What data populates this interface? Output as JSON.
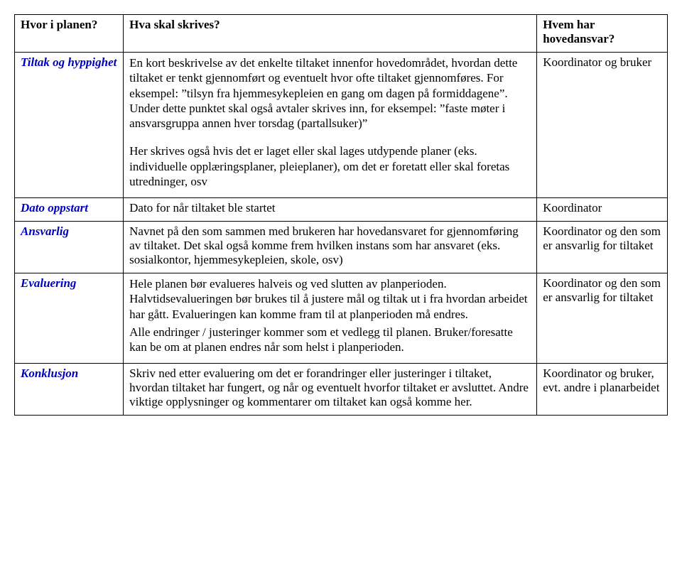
{
  "colors": {
    "text": "#000000",
    "border": "#000000",
    "rowlabel": "#0000bf",
    "background": "#ffffff"
  },
  "typography": {
    "font_family": "Times New Roman",
    "base_size_pt": 13
  },
  "header": {
    "col1": "Hvor i planen?",
    "col2": "Hva skal skrives?",
    "col3": "Hvem har hovedansvar?"
  },
  "rows": {
    "r1": {
      "label": "Tiltak og hyppighet",
      "content_p1": "En kort beskrivelse av det enkelte tiltaket innenfor hovedområdet, hvordan dette tiltaket er tenkt gjennomført og eventuelt hvor ofte tiltaket gjennomføres. For eksempel: ”tilsyn fra hjemmesykepleien en gang om dagen på formiddagene”. Under dette punktet skal også avtaler skrives inn, for eksempel: ”faste møter i ansvarsgruppa annen hver torsdag (partallsuker)”",
      "content_p2": "Her skrives også hvis det er laget eller skal lages utdypende planer (eks. individuelle opplæringsplaner, pleieplaner), om det er foretatt eller skal foretas utredninger, osv",
      "responsible": "Koordinator og bruker"
    },
    "r2": {
      "label": "Dato oppstart",
      "content": "Dato for når tiltaket ble startet",
      "responsible": "Koordinator"
    },
    "r3": {
      "label": "Ansvarlig",
      "content": "Navnet på den som sammen med brukeren har hovedansvaret for gjennomføring av tiltaket. Det skal også komme frem hvilken instans som har ansvaret (eks. sosialkontor, hjemmesykepleien, skole, osv)",
      "responsible": "Koordinator og den som er ansvarlig for tiltaket"
    },
    "r4": {
      "label": "Evaluering",
      "content_p1": "Hele planen bør evalueres halveis og ved slutten av planperioden. Halvtidsevalueringen bør brukes til å justere mål og tiltak ut i fra hvordan arbeidet har gått. Evalueringen kan komme fram til at planperioden må endres.",
      "content_p2": "Alle endringer / justeringer kommer som et vedlegg til planen. Bruker/foresatte kan be om at planen endres når som helst i planperioden.",
      "responsible": "Koordinator og den som er ansvarlig for tiltaket"
    },
    "r5": {
      "label": "Konklusjon",
      "content": "Skriv ned etter evaluering om det er forandringer eller justeringer i tiltaket, hvordan tiltaket har fungert, og når og eventuelt hvorfor tiltaket er avsluttet. Andre viktige opplysninger og kommentarer om tiltaket kan også komme her.",
      "responsible": "Koordinator og bruker, evt. andre i planarbeidet"
    }
  }
}
